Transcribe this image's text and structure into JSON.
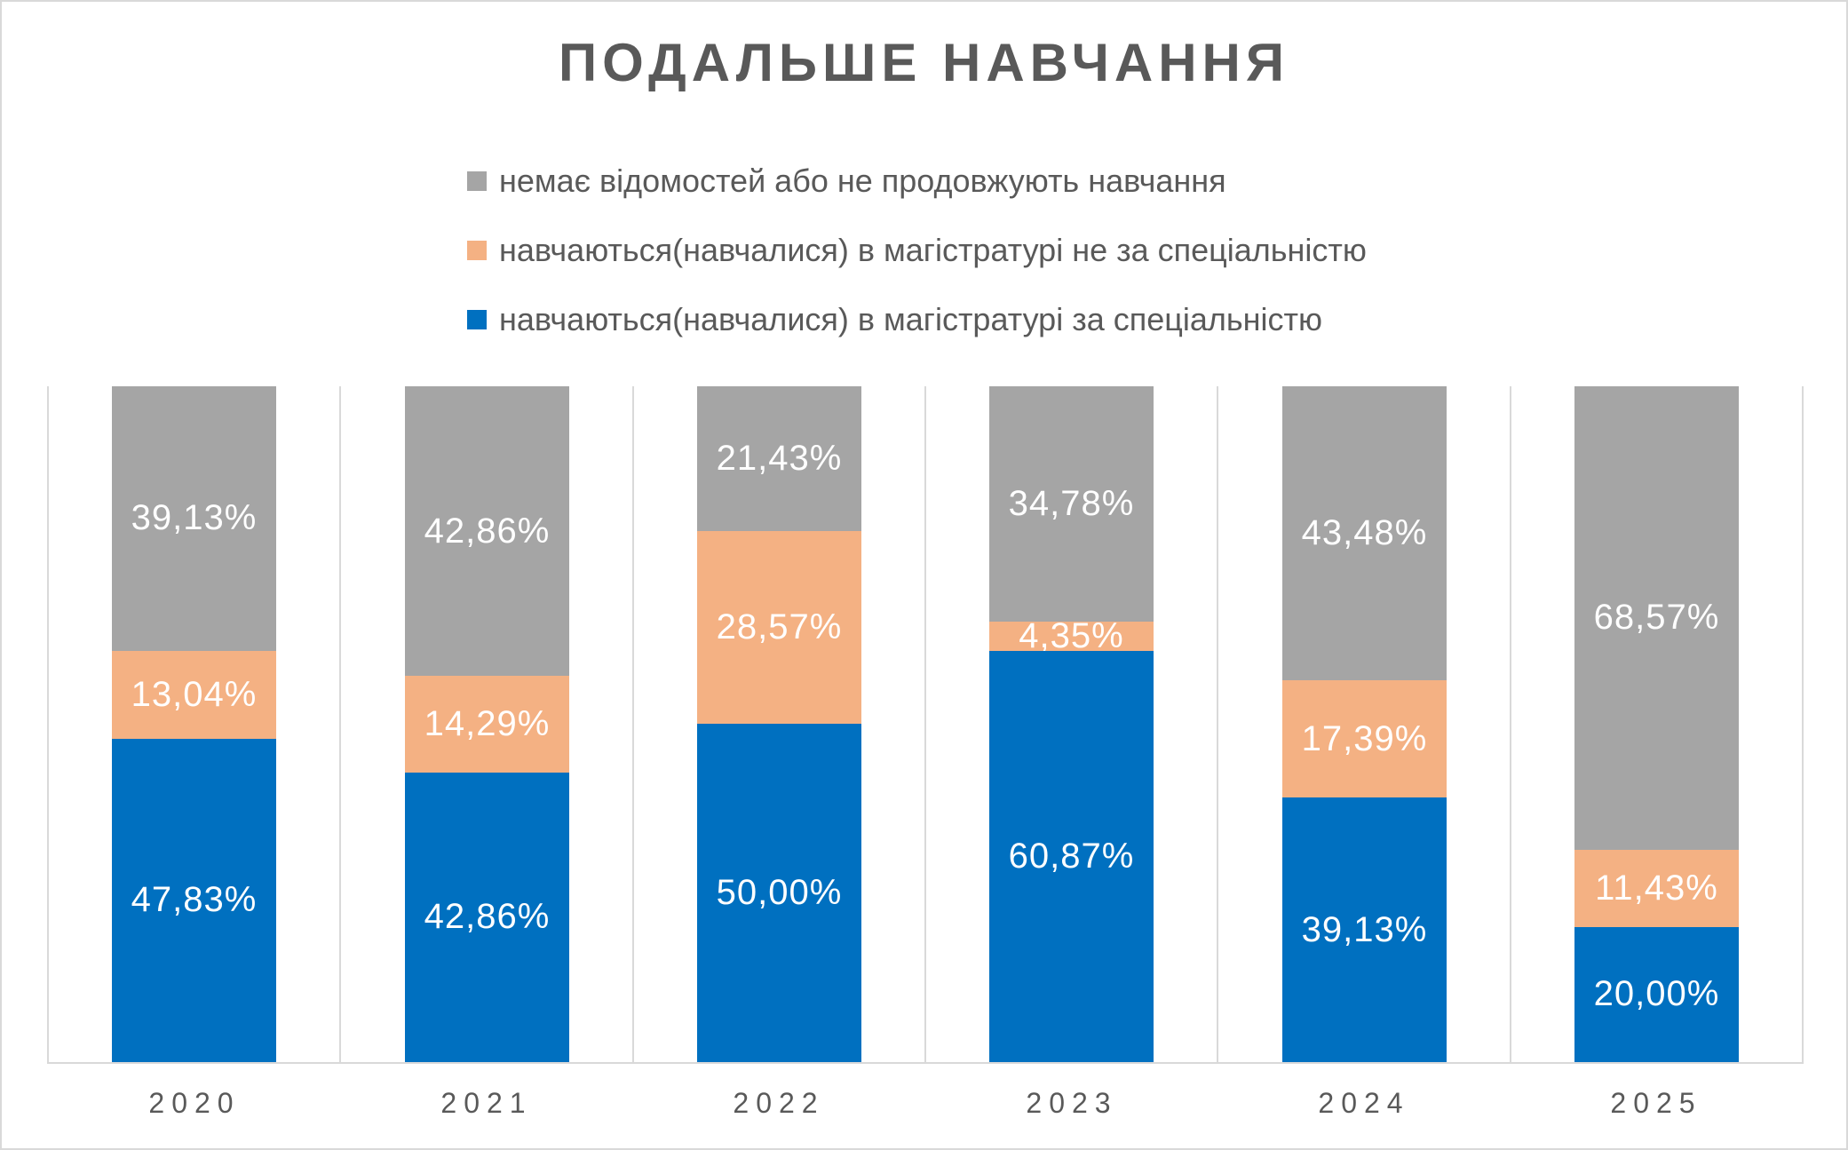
{
  "title": "ПОДАЛЬШЕ НАВЧАННЯ",
  "legend": [
    {
      "label": "немає відомостей або не продовжують навчання",
      "color": "#A5A5A5"
    },
    {
      "label": "навчаються(навчалися) в магістратурі не за спеціальністю",
      "color": "#F4B183"
    },
    {
      "label": "навчаються(навчалися) в магістратурі за спеціальністю",
      "color": "#0070C0"
    }
  ],
  "colors": {
    "title_text": "#595959",
    "axis_label_text": "#595959",
    "legend_text": "#595959",
    "gridline": "#D9D9D9",
    "axis_line": "#D9D9D9",
    "data_label_text": "#FFFFFF"
  },
  "chart_data": {
    "type": "bar",
    "stacked": true,
    "stacked_100_percent": true,
    "title": "ПОДАЛЬШЕ НАВЧАННЯ",
    "categories": [
      "2020",
      "2021",
      "2022",
      "2023",
      "2024",
      "2025"
    ],
    "series": [
      {
        "name": "навчаються(навчалися) в магістратурі за спеціальністю",
        "color": "#0070C0",
        "values": [
          47.83,
          42.86,
          50.0,
          60.87,
          39.13,
          20.0
        ],
        "data_labels": [
          "47,83%",
          "42,86%",
          "50,00%",
          "60,87%",
          "39,13%",
          "20,00%"
        ]
      },
      {
        "name": "навчаються(навчалися) в магістратурі не за спеціальністю",
        "color": "#F4B183",
        "values": [
          13.04,
          14.29,
          28.57,
          4.35,
          17.39,
          11.43
        ],
        "data_labels": [
          "13,04%",
          "14,29%",
          "28,57%",
          "4,35%",
          "17,39%",
          "11,43%"
        ]
      },
      {
        "name": "немає відомостей або не продовжують навчання",
        "color": "#A5A5A5",
        "values": [
          39.13,
          42.86,
          21.43,
          34.78,
          43.48,
          68.57
        ],
        "data_labels": [
          "39,13%",
          "42,86%",
          "21,43%",
          "34,78%",
          "43,48%",
          "68,57%"
        ]
      }
    ],
    "xlabel": "",
    "ylabel": "",
    "ylim": [
      0,
      100
    ],
    "grid": "vertical category boundaries only",
    "legend_position": "top, stacked rows, reverse series order"
  }
}
